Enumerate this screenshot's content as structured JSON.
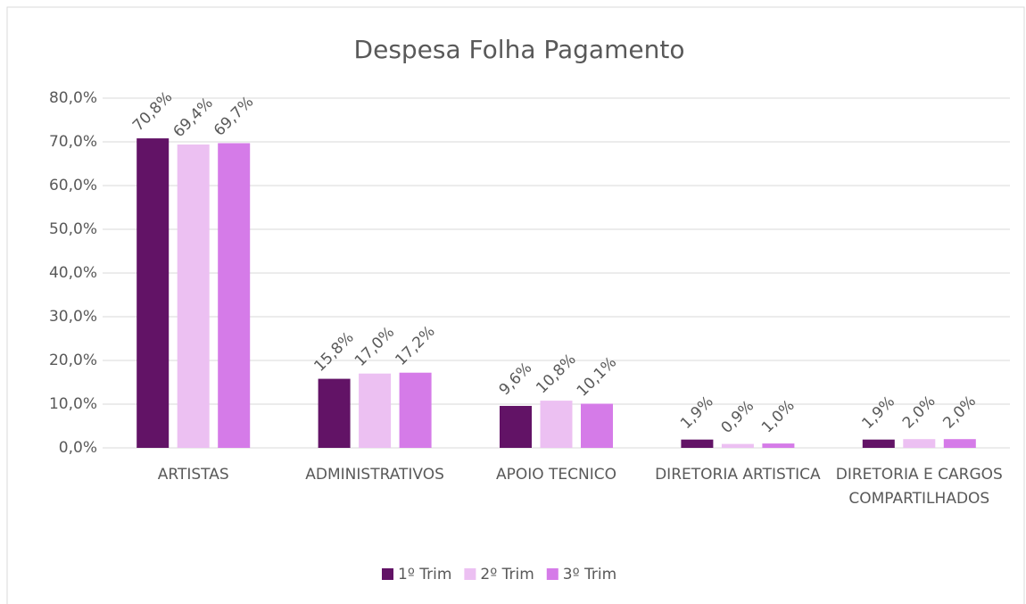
{
  "chart_data": {
    "type": "bar",
    "title": "Despesa Folha Pagamento",
    "categories": [
      "ARTISTAS",
      "ADMINISTRATIVOS",
      "APOIO TECNICO",
      "DIRETORIA ARTISTICA",
      "DIRETORIA E CARGOS COMPARTILHADOS"
    ],
    "series": [
      {
        "name": "1º Trim",
        "color": "#621366",
        "values": [
          70.8,
          15.8,
          9.6,
          1.9,
          1.9
        ],
        "value_labels": [
          "70,8%",
          "15,8%",
          "9,6%",
          "1,9%",
          "1,9%"
        ]
      },
      {
        "name": "2º Trim",
        "color": "#ecc0f2",
        "values": [
          69.4,
          17.0,
          10.8,
          0.9,
          2.0
        ],
        "value_labels": [
          "69,4%",
          "17,0%",
          "10,8%",
          "0,9%",
          "2,0%"
        ]
      },
      {
        "name": "3º Trim",
        "color": "#d57be8",
        "values": [
          69.7,
          17.2,
          10.1,
          1.0,
          2.0
        ],
        "value_labels": [
          "69,7%",
          "17,2%",
          "10,1%",
          "1,0%",
          "2,0%"
        ]
      }
    ],
    "ylim": [
      0,
      80
    ],
    "yticks": [
      {
        "value": 0,
        "label": "0,0%"
      },
      {
        "value": 10,
        "label": "10,0%"
      },
      {
        "value": 20,
        "label": "20,0%"
      },
      {
        "value": 30,
        "label": "30,0%"
      },
      {
        "value": 40,
        "label": "40,0%"
      },
      {
        "value": 50,
        "label": "50,0%"
      },
      {
        "value": 60,
        "label": "60,0%"
      },
      {
        "value": 70,
        "label": "70,0%"
      },
      {
        "value": 80,
        "label": "80,0%"
      }
    ],
    "grid": true,
    "legend": "bottom"
  }
}
